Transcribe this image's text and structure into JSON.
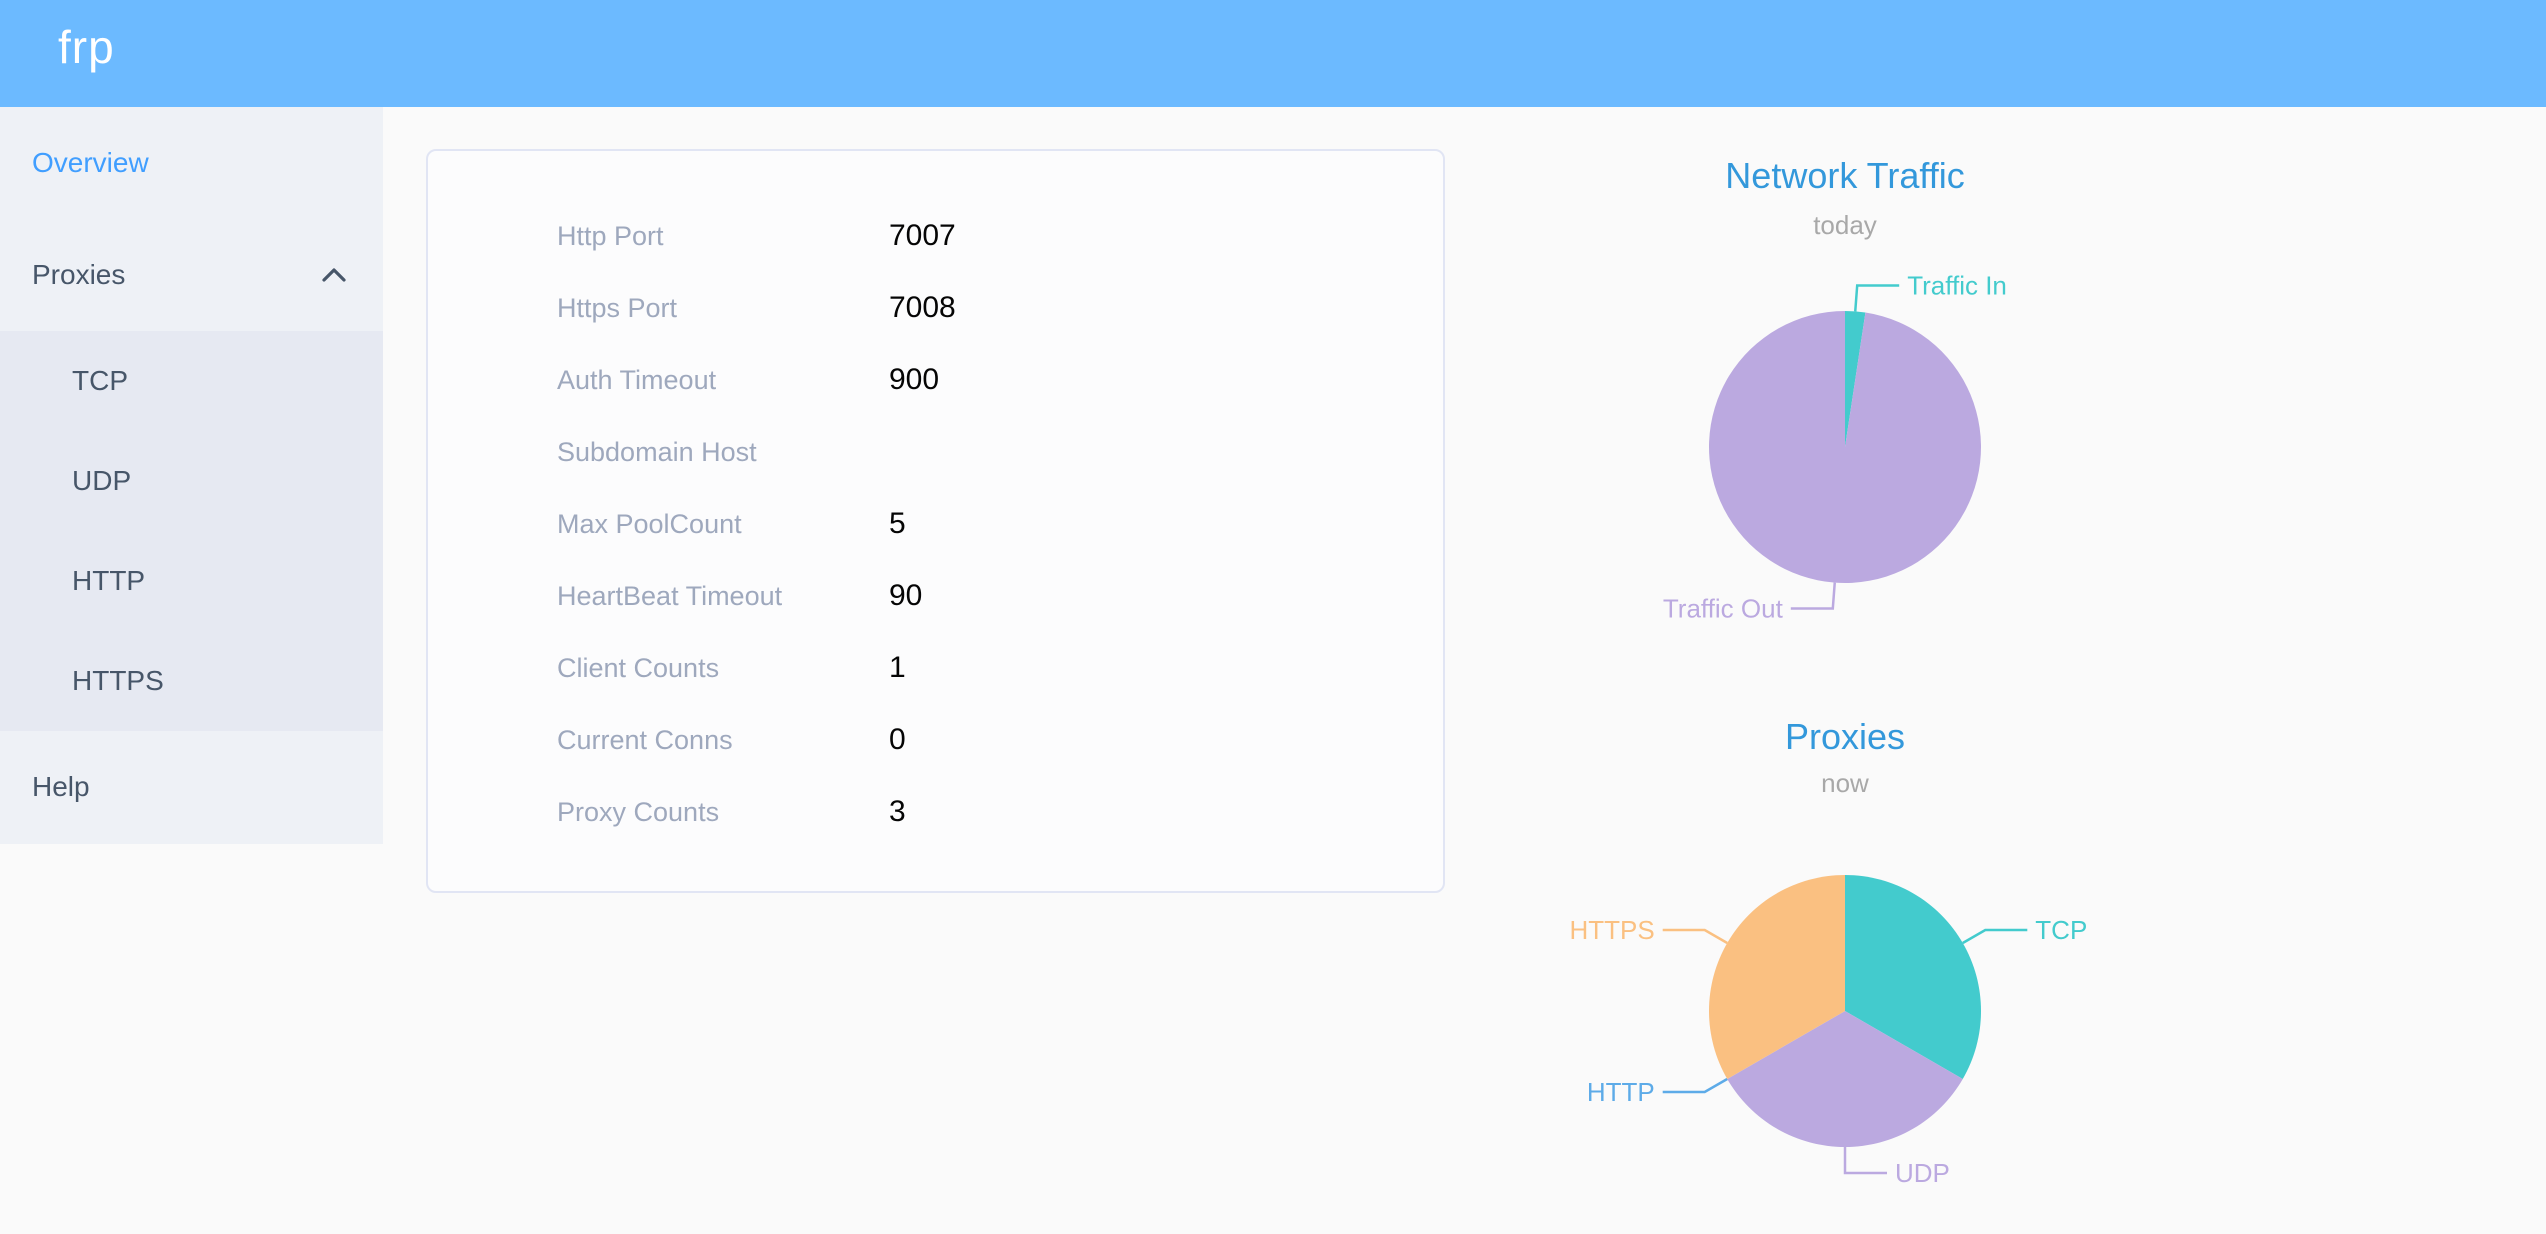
{
  "header": {
    "logo": "frp"
  },
  "sidebar": {
    "overview": {
      "label": "Overview",
      "active": true
    },
    "proxies": {
      "label": "Proxies",
      "expanded": true,
      "children": [
        {
          "label": "TCP"
        },
        {
          "label": "UDP"
        },
        {
          "label": "HTTP"
        },
        {
          "label": "HTTPS"
        }
      ]
    },
    "help": {
      "label": "Help"
    }
  },
  "overview": {
    "rows": [
      {
        "label": "Http Port",
        "value": "7007"
      },
      {
        "label": "Https Port",
        "value": "7008"
      },
      {
        "label": "Auth Timeout",
        "value": "900"
      },
      {
        "label": "Subdomain Host",
        "value": ""
      },
      {
        "label": "Max PoolCount",
        "value": "5"
      },
      {
        "label": "HeartBeat Timeout",
        "value": "90"
      },
      {
        "label": "Client Counts",
        "value": "1"
      },
      {
        "label": "Current Conns",
        "value": "0"
      },
      {
        "label": "Proxy Counts",
        "value": "3"
      }
    ]
  },
  "chart_data": [
    {
      "type": "pie",
      "title": "Network Traffic",
      "subtitle": "today",
      "label_position": "outside-with-leader-lines",
      "legend": "none",
      "slices": [
        {
          "name": "Traffic In",
          "value": 2.4,
          "color": "#43cbcd"
        },
        {
          "name": "Traffic Out",
          "value": 97.6,
          "color": "#bba9e0"
        }
      ],
      "value_unit": "percent of today's traffic (estimated from slice angles)"
    },
    {
      "type": "pie",
      "title": "Proxies",
      "subtitle": "now",
      "label_position": "outside-with-leader-lines",
      "legend": "none",
      "slices": [
        {
          "name": "TCP",
          "value": 1,
          "color": "#43cbcd"
        },
        {
          "name": "UDP",
          "value": 1,
          "color": "#bba9e0"
        },
        {
          "name": "HTTP",
          "value": 0,
          "color": "#5dabe8"
        },
        {
          "name": "HTTPS",
          "value": 1,
          "color": "#fac081"
        }
      ],
      "value_unit": "proxy count by type"
    }
  ],
  "colors": {
    "header_blue": "#6cbaff",
    "active_menu_blue": "#409eff",
    "chart_title_blue": "#3398db",
    "sidebar_bg": "#eef1f6",
    "submenu_bg": "#e6e9f2",
    "teal": "#43cbcd",
    "purple": "#bba9e0",
    "blue": "#5dabe8",
    "orange": "#fac081"
  }
}
